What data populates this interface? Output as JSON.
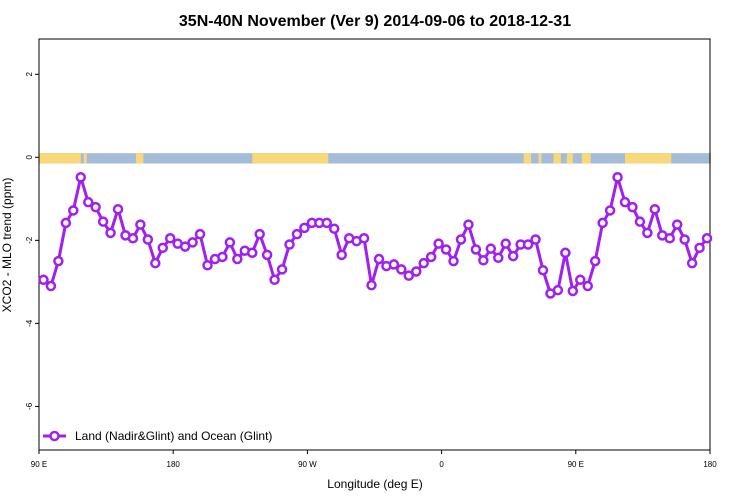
{
  "chart_data": {
    "type": "line",
    "title": "35N-40N November (Ver 9)   2014-09-06 to 2018-12-31",
    "xlabel": "Longitude (deg E)",
    "ylabel": "XCO2 - MLO trend (ppm)",
    "x_ticks": [
      {
        "value": 90,
        "label": "90 E"
      },
      {
        "value": 180,
        "label": "180"
      },
      {
        "value": 270,
        "label": "90 W"
      },
      {
        "value": 360,
        "label": "0"
      },
      {
        "value": 450,
        "label": "90 E"
      },
      {
        "value": 540,
        "label": "180"
      }
    ],
    "y_ticks": [
      2,
      0,
      -2,
      -4,
      -6
    ],
    "xlim": [
      90,
      540
    ],
    "ylim": [
      -7.05,
      2.85
    ],
    "grid": false,
    "legend_position": "bottom-left",
    "surface_strip": {
      "y_top": 0.1,
      "y_bottom": -0.15,
      "ocean_color": "#a4bcd8",
      "land_color": "#f8d878",
      "land_segments": [
        [
          90,
          118
        ],
        [
          120,
          122
        ],
        [
          155,
          160
        ],
        [
          233,
          284
        ],
        [
          415,
          420
        ],
        [
          425,
          427
        ],
        [
          435,
          440
        ],
        [
          444,
          448
        ],
        [
          454,
          460
        ],
        [
          483,
          514
        ],
        [
          540,
          540
        ]
      ]
    },
    "series": [
      {
        "name": "Land (Nadir&Glint) and Ocean (Glint)",
        "color": "#a020f0",
        "x": [
          93,
          98,
          103,
          108,
          113,
          118,
          123,
          128,
          133,
          138,
          143,
          148,
          153,
          158,
          163,
          168,
          173,
          178,
          183,
          188,
          193,
          198,
          203,
          208,
          213,
          218,
          223,
          228,
          233,
          238,
          243,
          248,
          253,
          258,
          263,
          268,
          273,
          278,
          283,
          288,
          293,
          298,
          303,
          308,
          313,
          318,
          323,
          328,
          333,
          338,
          343,
          348,
          353,
          358,
          363,
          368,
          373,
          378,
          383,
          388,
          393,
          398,
          403,
          408,
          413,
          418,
          423,
          428,
          433,
          438,
          443,
          448,
          453,
          458,
          463,
          468,
          473,
          478,
          483,
          488,
          493,
          498,
          503,
          508,
          513,
          518,
          523,
          528,
          533,
          538
        ],
        "values": [
          -2.95,
          -3.1,
          -2.5,
          -1.58,
          -1.28,
          -0.48,
          -1.08,
          -1.2,
          -1.55,
          -1.82,
          -1.25,
          -1.88,
          -1.95,
          -1.62,
          -1.98,
          -2.55,
          -2.18,
          -1.95,
          -2.08,
          -2.15,
          -2.05,
          -1.85,
          -2.6,
          -2.45,
          -2.4,
          -2.05,
          -2.45,
          -2.25,
          -2.3,
          -1.85,
          -2.35,
          -2.95,
          -2.7,
          -2.1,
          -1.85,
          -1.7,
          -1.58,
          -1.58,
          -1.58,
          -1.72,
          -2.35,
          -1.95,
          -2.02,
          -1.95,
          -3.08,
          -2.45,
          -2.62,
          -2.58,
          -2.7,
          -2.85,
          -2.75,
          -2.55,
          -2.4,
          -2.08,
          -2.22,
          -2.5,
          -1.98,
          -1.62,
          -2.22,
          -2.48,
          -2.2,
          -2.42,
          -2.08,
          -2.38,
          -2.1,
          -2.1,
          -1.98,
          -2.72,
          -3.28,
          -3.2,
          -2.3,
          -3.22,
          -2.95,
          -3.1,
          -2.5,
          -1.58,
          -1.28,
          -0.48,
          -1.08,
          -1.2,
          -1.55,
          -1.82,
          -1.25,
          -1.88,
          -1.95,
          -1.62,
          -1.98,
          -2.55,
          -2.18,
          -1.95
        ]
      }
    ]
  }
}
